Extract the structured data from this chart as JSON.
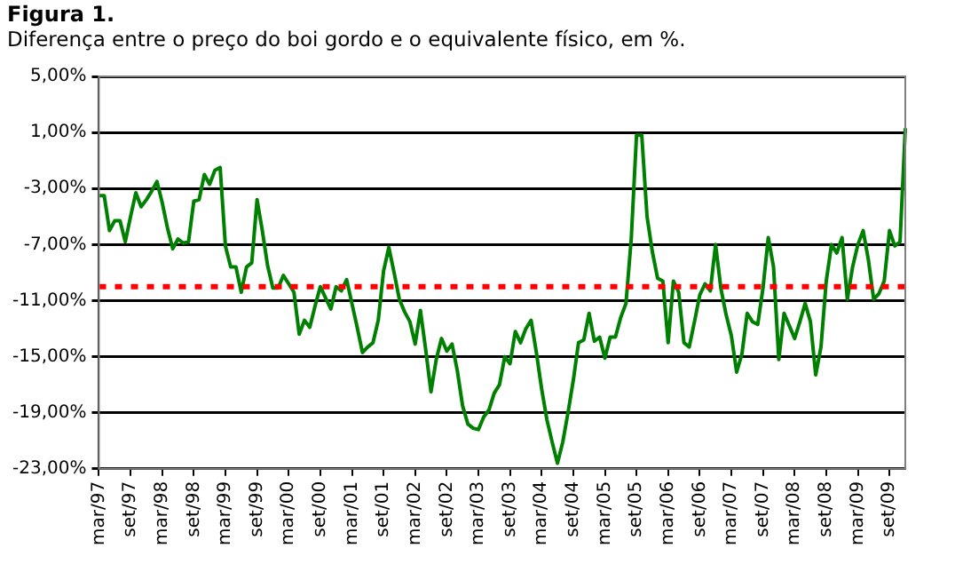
{
  "chart_data": {
    "type": "line",
    "title": "Figura 1.",
    "subtitle": "Diferença entre o preço do boi gordo e o equivalente físico, em %.",
    "categories": [
      "mar/97",
      null,
      null,
      null,
      null,
      null,
      "set/97",
      null,
      null,
      null,
      null,
      null,
      "mar/98",
      null,
      null,
      null,
      null,
      null,
      "set/98",
      null,
      null,
      null,
      null,
      null,
      "mar/99",
      null,
      null,
      null,
      null,
      null,
      "set/99",
      null,
      null,
      null,
      null,
      null,
      "mar/00",
      null,
      null,
      null,
      null,
      null,
      "set/00",
      null,
      null,
      null,
      null,
      null,
      "mar/01",
      null,
      null,
      null,
      null,
      null,
      "set/01",
      null,
      null,
      null,
      null,
      null,
      "mar/02",
      null,
      null,
      null,
      null,
      null,
      "set/02",
      null,
      null,
      null,
      null,
      null,
      "mar/03",
      null,
      null,
      null,
      null,
      null,
      "set/03",
      null,
      null,
      null,
      null,
      null,
      "mar/04",
      null,
      null,
      null,
      null,
      null,
      "set/04",
      null,
      null,
      null,
      null,
      null,
      "mar/05",
      null,
      null,
      null,
      null,
      null,
      "set/05",
      null,
      null,
      null,
      null,
      null,
      "mar/06",
      null,
      null,
      null,
      null,
      null,
      "set/06",
      null,
      null,
      null,
      null,
      null,
      "mar/07",
      null,
      null,
      null,
      null,
      null,
      "set/07",
      null,
      null,
      null,
      null,
      null,
      "mar/08",
      null,
      null,
      null,
      null,
      null,
      "set/08",
      null,
      null,
      null,
      null,
      null,
      "mar/09",
      null,
      null,
      null,
      null,
      null,
      "set/09",
      null,
      null,
      null
    ],
    "series": [
      {
        "color": "#008000",
        "values": [
          -3.5,
          -3.5,
          -6.0,
          -5.3,
          -5.3,
          -6.8,
          -5.0,
          -3.3,
          -4.3,
          -3.8,
          -3.2,
          -2.5,
          -4.0,
          -5.8,
          -7.3,
          -6.6,
          -6.9,
          -6.8,
          -3.9,
          -3.8,
          -2.0,
          -2.7,
          -1.7,
          -1.5,
          -7.1,
          -8.6,
          -8.6,
          -10.4,
          -8.6,
          -8.3,
          -3.8,
          -6.0,
          -8.5,
          -10.1,
          -10.1,
          -9.2,
          -9.8,
          -10.4,
          -13.4,
          -12.4,
          -12.9,
          -11.4,
          -10.0,
          -10.8,
          -11.6,
          -10.0,
          -10.3,
          -9.5,
          -11.2,
          -12.9,
          -14.7,
          -14.3,
          -14.0,
          -12.4,
          -8.9,
          -7.2,
          -9.0,
          -10.9,
          -11.8,
          -12.5,
          -14.1,
          -11.7,
          -14.5,
          -17.5,
          -15.2,
          -13.7,
          -14.6,
          -14.1,
          -16.0,
          -18.5,
          -19.8,
          -20.1,
          -20.2,
          -19.3,
          -18.8,
          -17.6,
          -17.0,
          -15.0,
          -15.5,
          -13.2,
          -14.0,
          -13.0,
          -12.4,
          -14.7,
          -17.3,
          -19.5,
          -21.1,
          -22.6,
          -21.1,
          -19.0,
          -16.7,
          -14.0,
          -13.8,
          -11.9,
          -13.9,
          -13.6,
          -15.1,
          -13.6,
          -13.6,
          -12.2,
          -11.2,
          -6.6,
          0.8,
          0.8,
          -5.0,
          -7.5,
          -9.4,
          -9.6,
          -14.0,
          -9.6,
          -10.4,
          -14.0,
          -14.3,
          -12.5,
          -10.6,
          -9.8,
          -10.3,
          -7.0,
          -10.1,
          -12.0,
          -13.5,
          -16.1,
          -14.8,
          -11.9,
          -12.5,
          -12.7,
          -10.1,
          -6.5,
          -8.6,
          -15.2,
          -11.9,
          -12.8,
          -13.7,
          -12.5,
          -11.2,
          -12.5,
          -16.3,
          -14.3,
          -9.6,
          -7.0,
          -7.6,
          -6.5,
          -10.9,
          -8.6,
          -7.0,
          -6.0,
          -8.1,
          -10.9,
          -10.5,
          -9.6,
          -6.0,
          -7.1,
          -6.8,
          1.3
        ]
      }
    ],
    "ylim": [
      -23,
      5
    ],
    "yticks": [
      {
        "value": 5,
        "label": "5,00%"
      },
      {
        "value": 1,
        "label": "1,00%"
      },
      {
        "value": -3,
        "label": "-3,00%"
      },
      {
        "value": -7,
        "label": "-7,00%"
      },
      {
        "value": -11,
        "label": "-11,00%"
      },
      {
        "value": -15,
        "label": "-15,00%"
      },
      {
        "value": -19,
        "label": "-19,00%"
      },
      {
        "value": -23,
        "label": "-23,00%"
      }
    ],
    "grid": "y",
    "ref_lines": [
      {
        "axis": "y",
        "value": -10,
        "color": "#ff0000",
        "line_style": "dotted"
      }
    ]
  }
}
